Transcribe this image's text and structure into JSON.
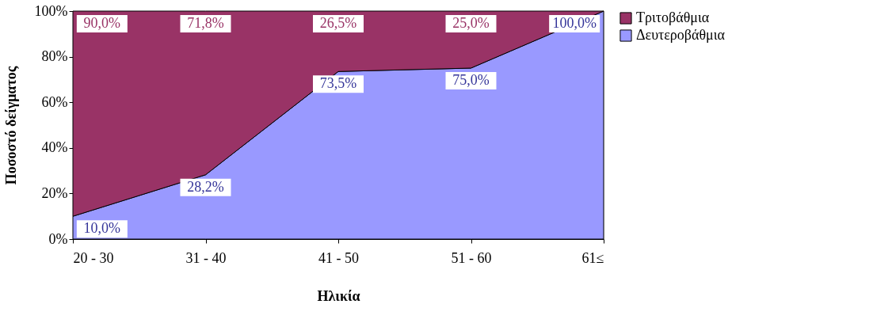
{
  "chart_data": {
    "type": "area",
    "stacked": true,
    "xlabel": "Ηλικία",
    "ylabel": "Ποσοστό δείγματος",
    "categories": [
      "20 - 30",
      "31 - 40",
      "41 - 50",
      "51 - 60",
      "61≤"
    ],
    "series": [
      {
        "name": "Δευτεροβάθμια",
        "color": "#9999ff",
        "values": [
          10.0,
          28.2,
          73.5,
          75.0,
          100.0
        ],
        "value_labels": [
          "10,0%",
          "28,2%",
          "73,5%",
          "75,0%",
          "100,0%"
        ]
      },
      {
        "name": "Τριτοβάθμια",
        "color": "#993366",
        "values": [
          90.0,
          71.8,
          26.5,
          25.0,
          0
        ],
        "value_labels": [
          "90,0%",
          "71,8%",
          "26,5%",
          "25,0%",
          null
        ]
      }
    ],
    "ylim": [
      0,
      100
    ],
    "yticks": [
      {
        "value": 0,
        "label": "0%"
      },
      {
        "value": 20,
        "label": "20%"
      },
      {
        "value": 40,
        "label": "40%"
      },
      {
        "value": 60,
        "label": "60%"
      },
      {
        "value": 80,
        "label": "80%"
      },
      {
        "value": 100,
        "label": "100%"
      }
    ],
    "legend": "right"
  }
}
